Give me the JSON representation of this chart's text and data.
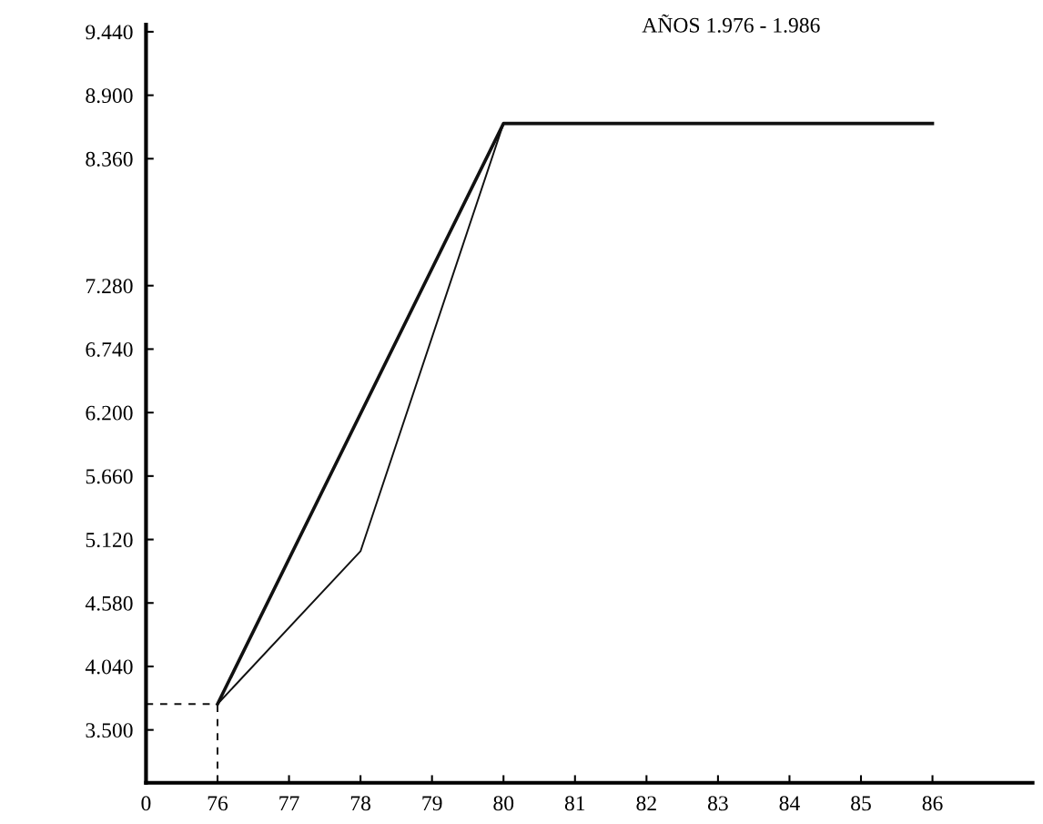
{
  "chart_data": {
    "type": "line",
    "title": "AÑOS 1.976 - 1.986",
    "categories": [
      "0",
      "76",
      "77",
      "78",
      "79",
      "80",
      "81",
      "82",
      "83",
      "84",
      "85",
      "86"
    ],
    "series": [
      {
        "color": "#111111",
        "values": [
          null,
          3.72,
          null,
          null,
          null,
          8.66,
          null,
          null,
          null,
          null,
          null,
          8.66
        ]
      },
      {
        "color": "#111111",
        "values": [
          null,
          3.72,
          null,
          5.02,
          null,
          8.66,
          null,
          null,
          null,
          null,
          null,
          8.66
        ]
      }
    ],
    "ylim": [
      3.05,
      9.5
    ],
    "yticks": [
      {
        "value": 3.5,
        "label": "3.500"
      },
      {
        "value": 4.04,
        "label": "4.040"
      },
      {
        "value": 4.58,
        "label": "4.580"
      },
      {
        "value": 5.12,
        "label": "5.120"
      },
      {
        "value": 5.66,
        "label": "5.660"
      },
      {
        "value": 6.2,
        "label": "6.200"
      },
      {
        "value": 6.74,
        "label": "6.740"
      },
      {
        "value": 7.28,
        "label": "7.280"
      },
      {
        "value": 8.36,
        "label": "8.360"
      },
      {
        "value": 8.9,
        "label": "8.900"
      },
      {
        "value": 9.44,
        "label": "9.440"
      }
    ],
    "ref_lines": [
      {
        "axis": "y",
        "value": 3.72,
        "line_style": "dashed"
      },
      {
        "axis": "x",
        "value": "76",
        "line_style": "dashed"
      }
    ],
    "grid": false,
    "legend": false,
    "marker": "none"
  }
}
